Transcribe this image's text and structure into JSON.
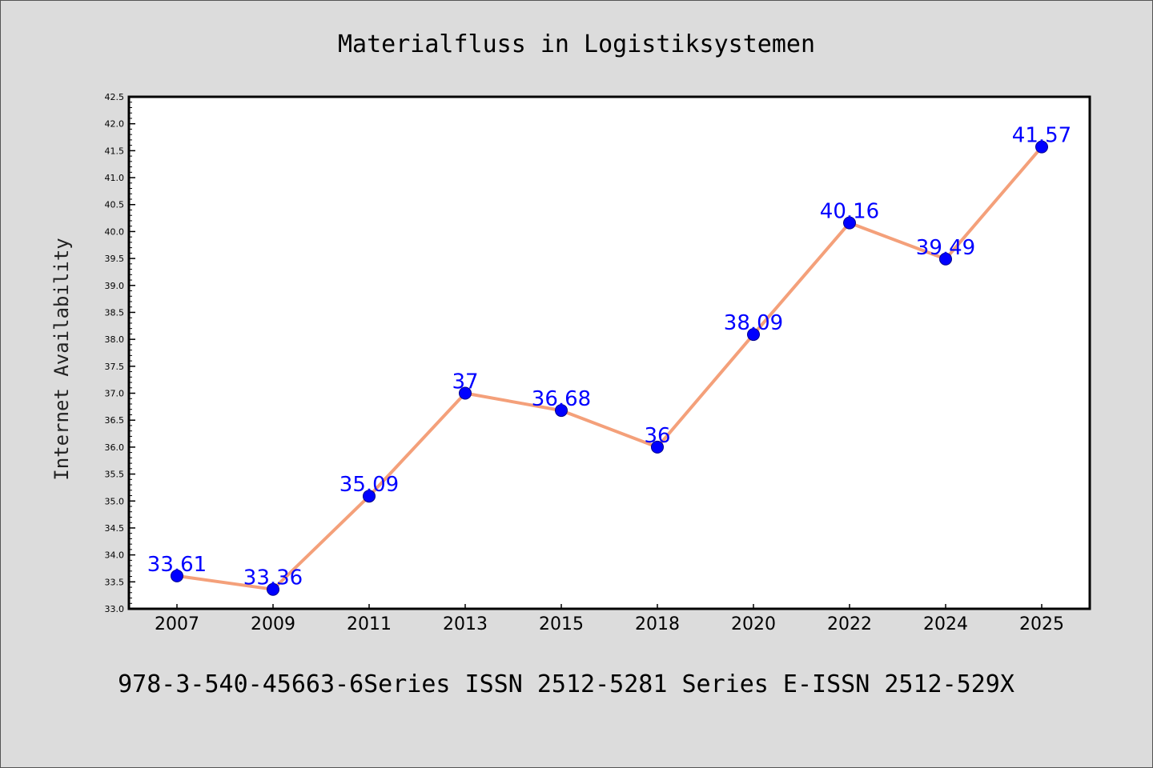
{
  "chart_data": {
    "type": "line",
    "title": "Materialfluss in Logistiksystemen",
    "ylabel": "Internet Availability",
    "xlabel": "",
    "categories": [
      "2007",
      "2009",
      "2011",
      "2013",
      "2015",
      "2018",
      "2020",
      "2022",
      "2024",
      "2025"
    ],
    "values": [
      33.61,
      33.36,
      35.09,
      37,
      36.68,
      36,
      38.09,
      40.16,
      39.49,
      41.57
    ],
    "data_labels": [
      "33.61",
      "33.36",
      "35.09",
      "37",
      "36.68",
      "36",
      "38.09",
      "40.16",
      "39.49",
      "41.57"
    ],
    "ylim": [
      33.0,
      42.5
    ],
    "yticks": [
      "33.0",
      "33.5",
      "34.0",
      "34.5",
      "35.0",
      "35.5",
      "36.0",
      "36.5",
      "37.0",
      "37.5",
      "38.0",
      "38.5",
      "39.0",
      "39.5",
      "40.0",
      "40.5",
      "41.0",
      "41.5",
      "42.0",
      "42.5"
    ],
    "grid": false,
    "legend": "none",
    "colors": {
      "line": "#f4a07a",
      "marker": "#0000ff",
      "label": "#0000ff",
      "background": "#dcdcdc",
      "plot_background": "#ffffff"
    }
  },
  "footer": "978-3-540-45663-6Series ISSN 2512-5281 Series E-ISSN 2512-529X"
}
